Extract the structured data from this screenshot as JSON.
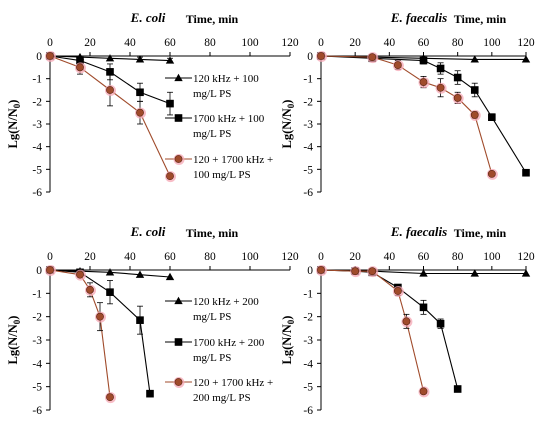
{
  "chart_data": [
    {
      "type": "line",
      "title": "E. coli",
      "xlabel": "Time, min",
      "ylabel": "Lg(N/N0)",
      "ylabel_sub": "0",
      "xlim": [
        0,
        120
      ],
      "ylim": [
        -6,
        0
      ],
      "xticks": [
        0,
        20,
        40,
        60,
        80,
        100,
        120
      ],
      "yticks": [
        0,
        -1,
        -2,
        -3,
        -4,
        -5,
        -6
      ],
      "legend_position": "right",
      "series": [
        {
          "name": "120 kHz + 100 mg/L PS",
          "legend_lines": [
            "120 kHz + 100",
            "mg/L PS"
          ],
          "marker": "triangle",
          "color": "#000000",
          "x": [
            0,
            15,
            30,
            45,
            60
          ],
          "y": [
            0,
            -0.05,
            -0.1,
            -0.15,
            -0.2
          ],
          "err": [
            0,
            0,
            0,
            0.1,
            0.1
          ]
        },
        {
          "name": "1700 kHz + 100 mg/L PS",
          "legend_lines": [
            "1700 kHz + 100",
            "mg/L PS"
          ],
          "marker": "square",
          "color": "#000000",
          "x": [
            0,
            15,
            30,
            45,
            60
          ],
          "y": [
            0,
            -0.2,
            -0.7,
            -1.6,
            -2.1
          ],
          "err": [
            0,
            0.2,
            0.35,
            0.4,
            0.5
          ]
        },
        {
          "name": "120 + 1700 kHz + 100 mg/L PS",
          "legend_lines": [
            "120 + 1700 kHz +",
            "100 mg/L PS"
          ],
          "marker": "circle",
          "color": "#a04b2b",
          "x": [
            0,
            15,
            30,
            45,
            60
          ],
          "y": [
            0,
            -0.5,
            -1.5,
            -2.5,
            -5.3
          ],
          "err": [
            0,
            0.3,
            0.7,
            0.5,
            0
          ]
        }
      ]
    },
    {
      "type": "line",
      "title": "E. faecalis",
      "xlabel": "Time, min",
      "ylabel": "Lg(N/N0)",
      "ylabel_sub": "0",
      "xlim": [
        0,
        120
      ],
      "ylim": [
        -6,
        0
      ],
      "xticks": [
        0,
        20,
        40,
        60,
        80,
        100,
        120
      ],
      "yticks": [
        0,
        -1,
        -2,
        -3,
        -4,
        -5,
        -6
      ],
      "series": [
        {
          "name": "120 kHz + 100 mg/L PS",
          "marker": "triangle",
          "color": "#000000",
          "x": [
            0,
            30,
            60,
            90,
            120
          ],
          "y": [
            0,
            -0.05,
            -0.1,
            -0.15,
            -0.15
          ],
          "err": [
            0,
            0,
            0,
            0,
            0
          ]
        },
        {
          "name": "1700 kHz + 100 mg/L PS",
          "marker": "square",
          "color": "#000000",
          "x": [
            0,
            30,
            60,
            70,
            80,
            90,
            100,
            120
          ],
          "y": [
            0,
            -0.1,
            -0.2,
            -0.55,
            -0.95,
            -1.5,
            -2.7,
            -5.15
          ],
          "err": [
            0,
            0.1,
            0.15,
            0.25,
            0.3,
            0.3,
            0.15,
            0
          ]
        },
        {
          "name": "120 + 1700 kHz + 100 mg/L PS",
          "marker": "circle",
          "color": "#a04b2b",
          "x": [
            0,
            30,
            45,
            60,
            70,
            80,
            90,
            100
          ],
          "y": [
            0,
            -0.05,
            -0.4,
            -1.15,
            -1.4,
            -1.85,
            -2.6,
            -5.2
          ],
          "err": [
            0,
            0.1,
            0.2,
            0.25,
            0.4,
            0.25,
            0.15,
            0
          ]
        }
      ]
    },
    {
      "type": "line",
      "title": "E. coli",
      "xlabel": "Time, min",
      "ylabel": "Lg(N/N0)",
      "ylabel_sub": "0",
      "xlim": [
        0,
        120
      ],
      "ylim": [
        -6,
        0
      ],
      "xticks": [
        0,
        20,
        40,
        60,
        80,
        100,
        120
      ],
      "yticks": [
        0,
        -1,
        -2,
        -3,
        -4,
        -5,
        -6
      ],
      "legend_position": "right",
      "series": [
        {
          "name": "120 kHz + 200 mg/L PS",
          "legend_lines": [
            "120 kHz + 200",
            "mg/L PS"
          ],
          "marker": "triangle",
          "color": "#000000",
          "x": [
            0,
            15,
            30,
            45,
            60
          ],
          "y": [
            0,
            -0.05,
            -0.1,
            -0.2,
            -0.3
          ],
          "err": [
            0,
            0,
            0,
            0,
            0
          ]
        },
        {
          "name": "1700 kHz + 200 mg/L PS",
          "legend_lines": [
            "1700 kHz + 200",
            "mg/L PS"
          ],
          "marker": "square",
          "color": "#000000",
          "x": [
            0,
            15,
            30,
            45,
            50
          ],
          "y": [
            0,
            -0.1,
            -0.95,
            -2.15,
            -5.3
          ],
          "err": [
            0,
            0.1,
            0.5,
            0.6,
            0
          ]
        },
        {
          "name": "120 + 1700 kHz + 200 mg/L PS",
          "legend_lines": [
            "120 + 1700 kHz +",
            "200 mg/L PS"
          ],
          "marker": "circle",
          "color": "#a04b2b",
          "x": [
            0,
            15,
            20,
            25,
            30
          ],
          "y": [
            0,
            -0.2,
            -0.85,
            -2.0,
            -5.45
          ],
          "err": [
            0,
            0.1,
            0.3,
            0.6,
            0
          ]
        }
      ]
    },
    {
      "type": "line",
      "title": "E. faecalis",
      "xlabel": "Time, min",
      "ylabel": "Lg(N/N0)",
      "ylabel_sub": "0",
      "xlim": [
        0,
        120
      ],
      "ylim": [
        -6,
        0
      ],
      "xticks": [
        0,
        20,
        40,
        60,
        80,
        100,
        120
      ],
      "yticks": [
        0,
        -1,
        -2,
        -3,
        -4,
        -5,
        -6
      ],
      "series": [
        {
          "name": "120 kHz + 200 mg/L PS",
          "marker": "triangle",
          "color": "#000000",
          "x": [
            0,
            30,
            60,
            90,
            120
          ],
          "y": [
            0,
            -0.05,
            -0.15,
            -0.15,
            -0.15
          ],
          "err": [
            0,
            0,
            0,
            0,
            0
          ]
        },
        {
          "name": "1700 kHz + 200 mg/L PS",
          "marker": "square",
          "color": "#000000",
          "x": [
            0,
            20,
            30,
            45,
            60,
            70,
            80
          ],
          "y": [
            0,
            -0.05,
            -0.1,
            -0.75,
            -1.6,
            -2.3,
            -5.1
          ],
          "err": [
            0,
            0,
            0.1,
            0.1,
            0.3,
            0.2,
            0
          ]
        },
        {
          "name": "120 + 1700 kHz + 200 mg/L PS",
          "marker": "circle",
          "color": "#a04b2b",
          "x": [
            0,
            20,
            30,
            45,
            50,
            60
          ],
          "y": [
            0,
            -0.05,
            -0.05,
            -0.9,
            -2.2,
            -5.2
          ],
          "err": [
            0,
            0,
            0.1,
            0.2,
            0.3,
            0
          ]
        }
      ]
    }
  ]
}
